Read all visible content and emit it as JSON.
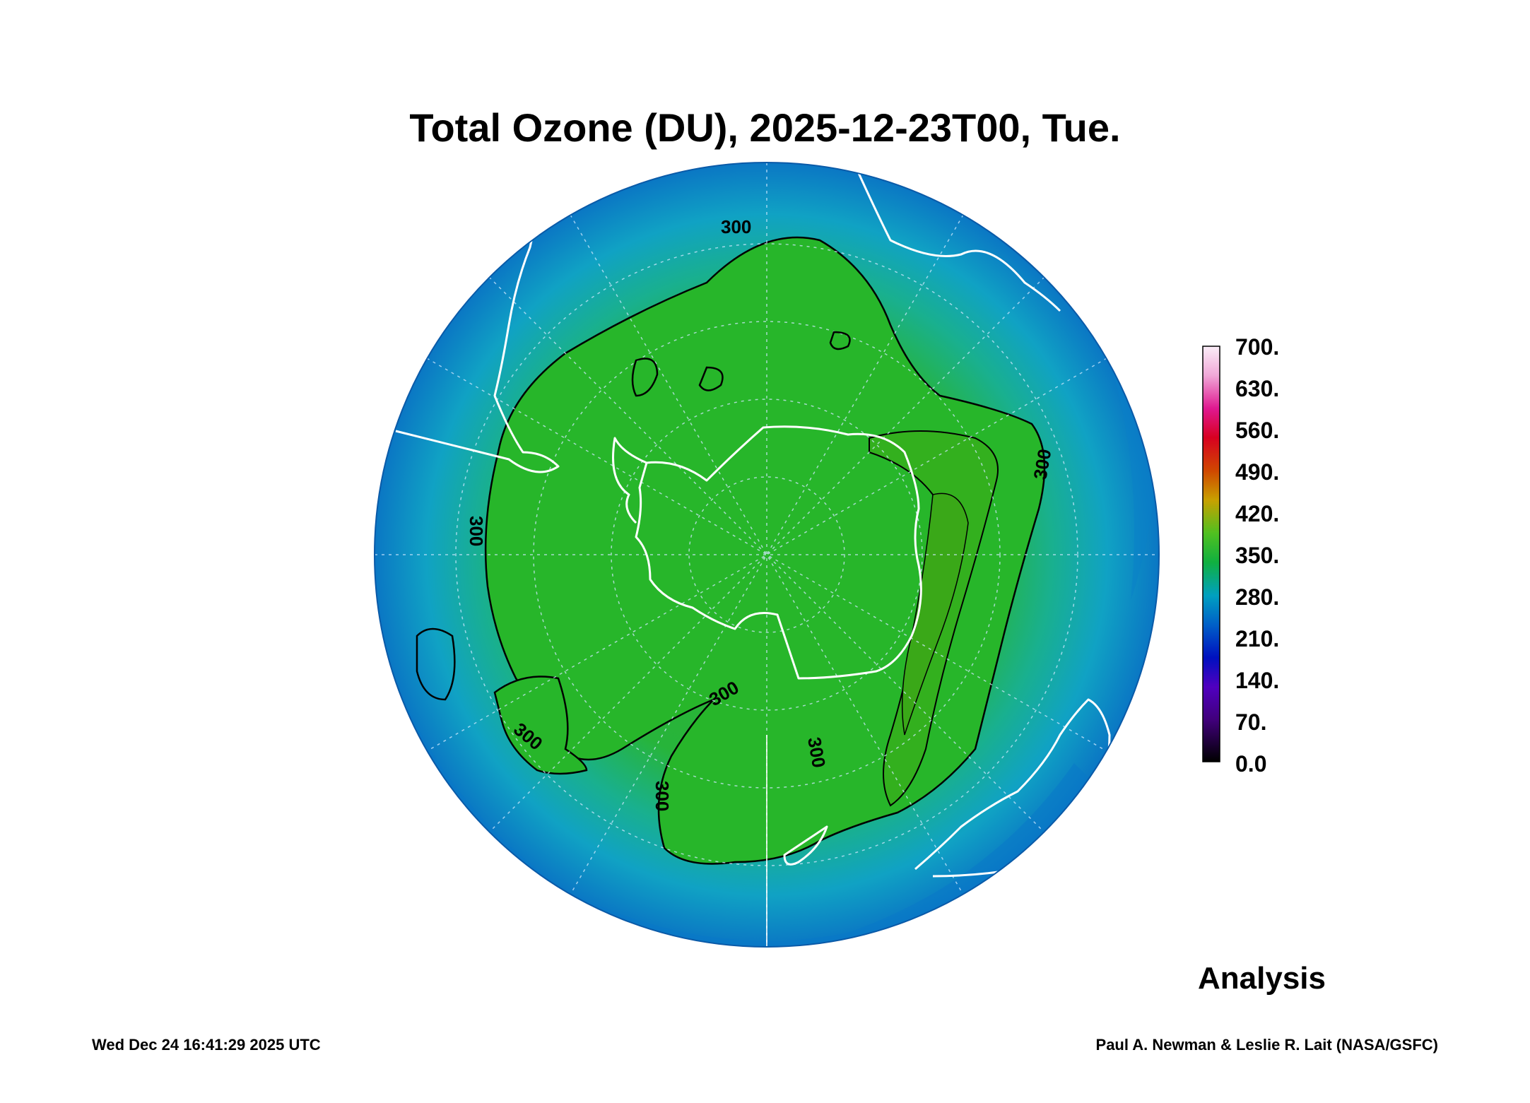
{
  "title": "Total Ozone (DU), 2025-12-23T00, Tue.",
  "colorbar": {
    "ticks": [
      "700.",
      "630.",
      "560.",
      "490.",
      "420.",
      "350.",
      "280.",
      "210.",
      "140.",
      "70.",
      "0.0"
    ],
    "colors": [
      "#f7e6f2",
      "#e020a0",
      "#cc0000",
      "#d06000",
      "#c0b000",
      "#20c020",
      "#0090c0",
      "#0020c0",
      "#6000c0",
      "#300060",
      "#000000"
    ]
  },
  "contour_labels": [
    "300",
    "300",
    "300",
    "300",
    "300",
    "300",
    "300"
  ],
  "analysis_label": "Analysis",
  "timestamp": "Wed Dec 24 16:41:29 2025 UTC",
  "credit": "Paul A. Newman & Leslie R. Lait (NASA/GSFC)",
  "map_colors": {
    "ozone_high": "#28b428",
    "ozone_mid": "#1eb464",
    "ozone_low": "#12a0c8",
    "ozone_edge": "#0a78c8",
    "coastline": "#ffffff",
    "contour": "#000000"
  }
}
